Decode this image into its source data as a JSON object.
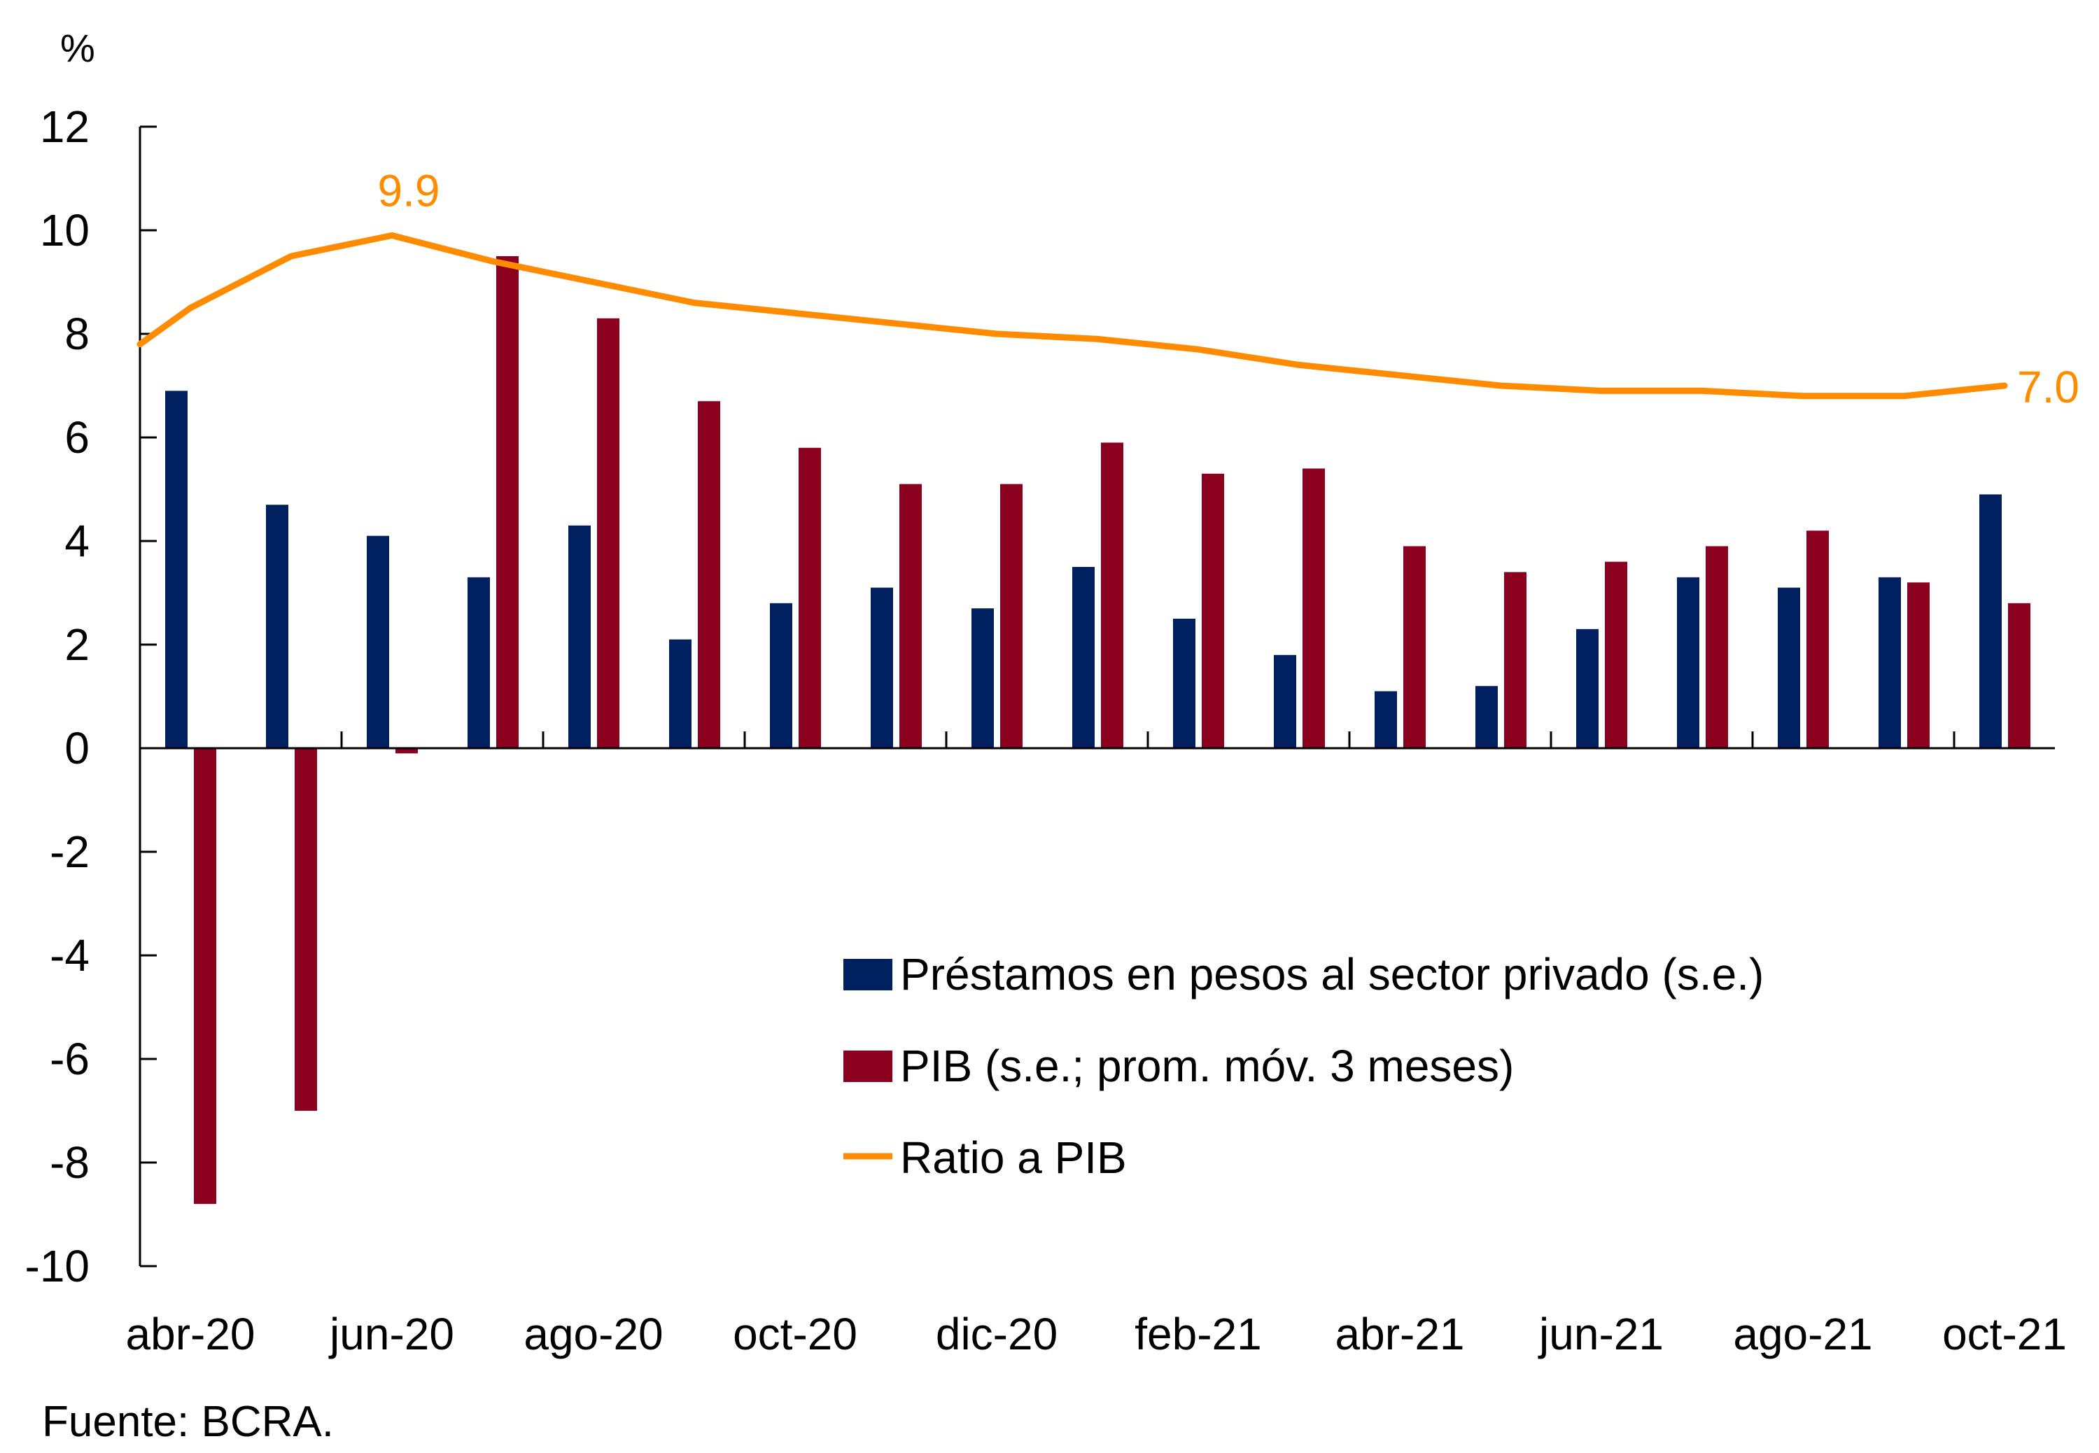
{
  "chart_data": {
    "type": "bar",
    "title": "",
    "unit_label": "%",
    "xlabel": "",
    "ylabel": "%",
    "ylim": [
      -10,
      12
    ],
    "yticks": [
      12,
      10,
      8,
      6,
      4,
      2,
      0,
      -2,
      -4,
      -6,
      -8,
      -10
    ],
    "grid": false,
    "categories": [
      "abr-20",
      "may-20",
      "jun-20",
      "jul-20",
      "ago-20",
      "sep-20",
      "oct-20",
      "nov-20",
      "dic-20",
      "ene-21",
      "feb-21",
      "mar-21",
      "abr-21",
      "may-21",
      "jun-21",
      "jul-21",
      "ago-21",
      "sep-21",
      "oct-21"
    ],
    "xtick_labels": [
      "abr-20",
      "jun-20",
      "ago-20",
      "oct-20",
      "dic-20",
      "feb-21",
      "abr-21",
      "jun-21",
      "ago-21",
      "oct-21"
    ],
    "series": [
      {
        "name": "Préstamos en pesos al sector privado (s.e.)",
        "type": "bar",
        "color": "#002060",
        "values": [
          6.9,
          4.7,
          4.1,
          3.3,
          4.3,
          2.1,
          2.8,
          3.1,
          2.7,
          3.5,
          2.5,
          1.8,
          1.1,
          1.2,
          2.3,
          3.3,
          3.1,
          3.3,
          4.9
        ]
      },
      {
        "name": "PIB (s.e.; prom. móv. 3 meses)",
        "type": "bar",
        "color": "#8B001E",
        "values": [
          -8.8,
          -7.0,
          -0.1,
          9.5,
          8.3,
          6.7,
          5.8,
          5.1,
          5.1,
          5.9,
          5.3,
          5.4,
          3.9,
          3.4,
          3.6,
          3.9,
          4.2,
          3.2,
          2.8
        ]
      },
      {
        "name": "Ratio a PIB",
        "type": "line",
        "color": "#FF8C00",
        "start_value_at_axis": 7.8,
        "values": [
          8.5,
          9.5,
          9.9,
          9.4,
          9.0,
          8.6,
          8.4,
          8.2,
          8.0,
          7.9,
          7.7,
          7.4,
          7.2,
          7.0,
          6.9,
          6.9,
          6.8,
          6.8,
          7.0
        ]
      }
    ],
    "annotations": [
      {
        "text": "9.9",
        "category": "jun-20",
        "series": "Ratio a PIB",
        "color": "#FF8C00"
      },
      {
        "text": "7.0",
        "category": "oct-21",
        "series": "Ratio a PIB",
        "color": "#FF8C00"
      }
    ],
    "legend": {
      "placement": "bottom-right",
      "entries": [
        {
          "label": "Préstamos en pesos al sector privado (s.e.)",
          "symbol": "square",
          "color": "#002060"
        },
        {
          "label": "PIB (s.e.; prom. móv. 3 meses)",
          "symbol": "square",
          "color": "#8B001E"
        },
        {
          "label": "Ratio a PIB",
          "symbol": "line",
          "color": "#FF8C00"
        }
      ]
    },
    "source": "Fuente: BCRA."
  }
}
